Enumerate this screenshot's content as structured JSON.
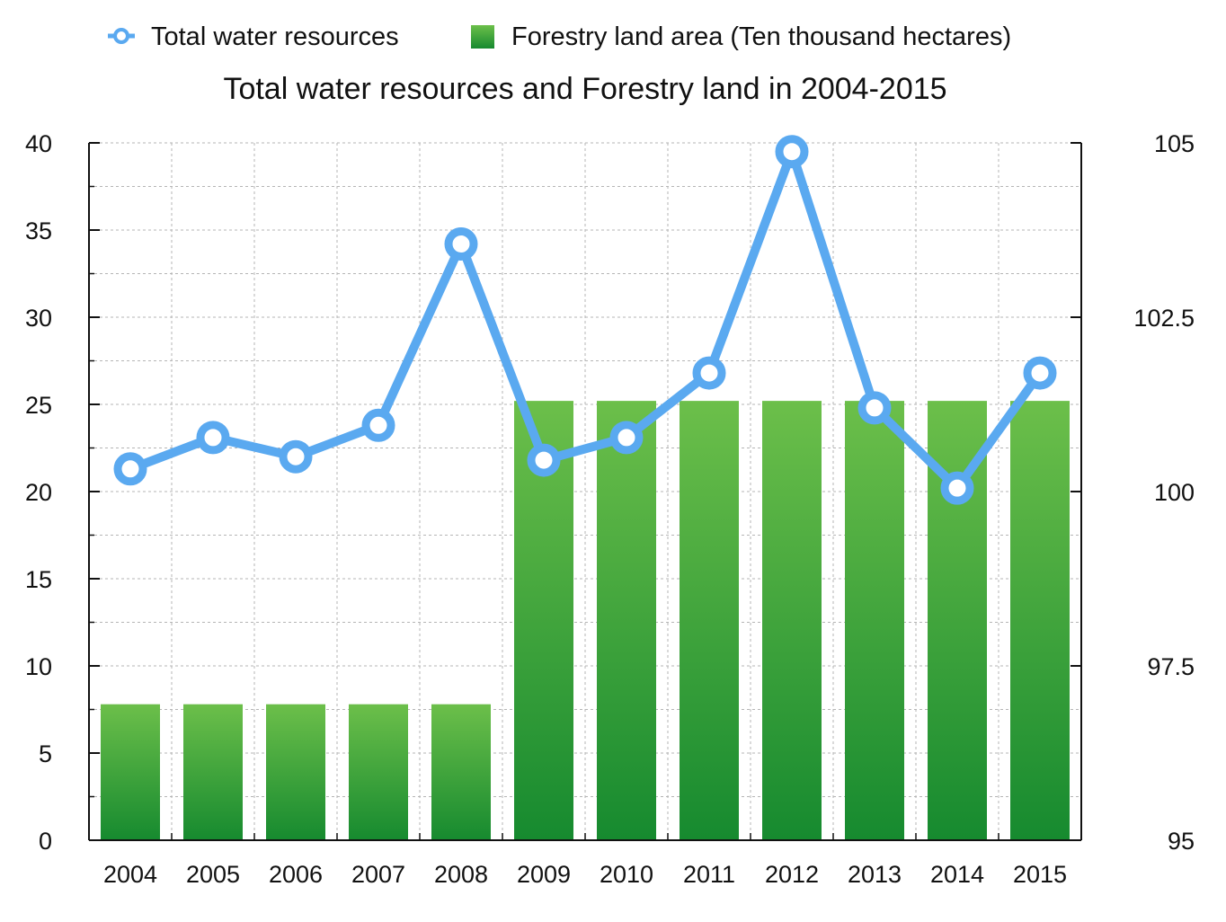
{
  "chart_data": {
    "type": "bar+line",
    "title": "Total water resources and Forestry land in 2004-2015",
    "categories": [
      "2004",
      "2005",
      "2006",
      "2007",
      "2008",
      "2009",
      "2010",
      "2011",
      "2012",
      "2013",
      "2014",
      "2015"
    ],
    "series": [
      {
        "name": "Total water resources",
        "type": "line",
        "axis": "left",
        "color": "#5aa9f0",
        "values": [
          21.3,
          23.1,
          22.0,
          23.8,
          34.2,
          21.8,
          23.1,
          26.8,
          39.5,
          24.8,
          20.2,
          26.8
        ]
      },
      {
        "name": "Forestry land area (Ten thousand hectares)",
        "type": "bar",
        "axis": "right",
        "color_top": "#6cbf4a",
        "color_bottom": "#168a2f",
        "values": [
          96.95,
          96.95,
          96.95,
          96.95,
          96.95,
          101.3,
          101.3,
          101.3,
          101.3,
          101.3,
          101.3,
          101.3
        ]
      }
    ],
    "y_left": {
      "ylim": [
        0,
        40
      ],
      "ticks": [
        "0",
        "5",
        "10",
        "15",
        "20",
        "25",
        "30",
        "35",
        "40"
      ]
    },
    "y_right": {
      "ylim": [
        95,
        105
      ],
      "ticks": [
        {
          "value": 95,
          "label": "95"
        },
        {
          "value": 97.5,
          "label": "97.5"
        },
        {
          "value": 100,
          "label": "100"
        },
        {
          "value": 102.5,
          "label": "102.5"
        },
        {
          "value": 105,
          "label": "105"
        }
      ]
    },
    "grid": true,
    "legend": "top"
  }
}
